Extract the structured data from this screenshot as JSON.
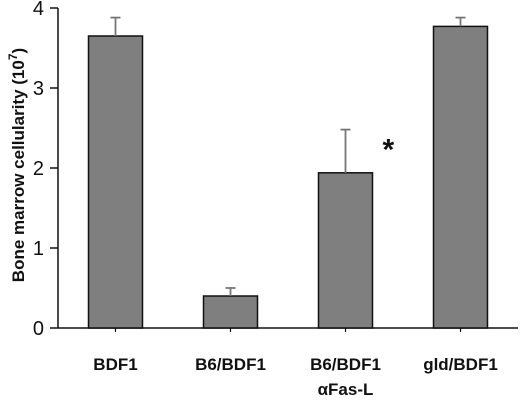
{
  "chart_data": {
    "type": "bar",
    "title": "",
    "ylabel": "Bone marrow cellularity (10",
    "ylabel_exponent": "7",
    "ylabel_close": ")",
    "ylim": [
      0,
      4
    ],
    "yticks": [
      "0",
      "1",
      "2",
      "3",
      "4"
    ],
    "categories": [
      {
        "line1": "BDF1",
        "line2": ""
      },
      {
        "line1": "B6/BDF1",
        "line2": ""
      },
      {
        "line1": "B6/BDF1",
        "line2": "αFas-L"
      },
      {
        "line1": "gld/BDF1",
        "line2": ""
      }
    ],
    "values": [
      3.65,
      0.4,
      1.94,
      3.77
    ],
    "errors": [
      0.23,
      0.1,
      0.54,
      0.11
    ],
    "annotations": [
      "",
      "",
      "*",
      ""
    ],
    "bar_color": "#7f7f7f",
    "grid": false
  }
}
